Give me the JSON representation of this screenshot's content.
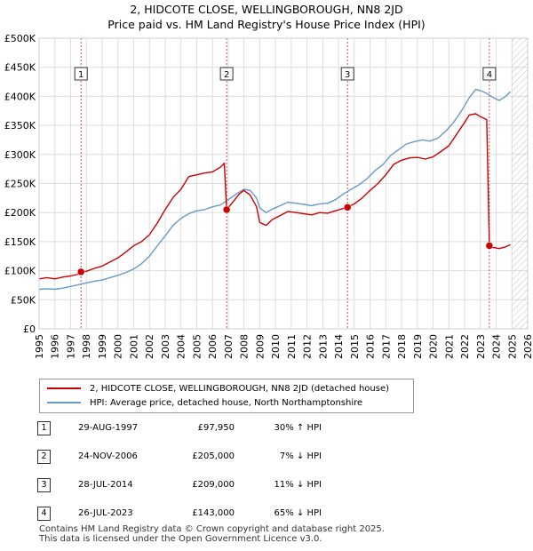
{
  "title_line1": "2, HIDCOTE CLOSE, WELLINGBOROUGH, NN8 2JD",
  "title_line2": "Price paid vs. HM Land Registry's House Price Index (HPI)",
  "colors": {
    "property": "#cc0000",
    "hpi": "#6699cc",
    "grid": "#dddddd",
    "hatch": "#999999",
    "marker_line": "#cc0000"
  },
  "chart_data": {
    "type": "line",
    "title": "Price paid vs. HM Land Registry's House Price Index (HPI)",
    "xlabel": "",
    "ylabel": "",
    "xlim": [
      1995,
      2026
    ],
    "ylim": [
      0,
      500000
    ],
    "x_ticks": [
      "1995",
      "1996",
      "1997",
      "1998",
      "1999",
      "2000",
      "2001",
      "2002",
      "2003",
      "2004",
      "2005",
      "2006",
      "2007",
      "2008",
      "2009",
      "2010",
      "2011",
      "2012",
      "2013",
      "2014",
      "2015",
      "2016",
      "2017",
      "2018",
      "2019",
      "2020",
      "2021",
      "2022",
      "2023",
      "2024",
      "2025",
      "2026"
    ],
    "y_ticks": [
      {
        "value": 0,
        "label": "£0"
      },
      {
        "value": 50000,
        "label": "£50K"
      },
      {
        "value": 100000,
        "label": "£100K"
      },
      {
        "value": 150000,
        "label": "£150K"
      },
      {
        "value": 200000,
        "label": "£200K"
      },
      {
        "value": 250000,
        "label": "£250K"
      },
      {
        "value": 300000,
        "label": "£300K"
      },
      {
        "value": 350000,
        "label": "£350K"
      },
      {
        "value": 400000,
        "label": "£400K"
      },
      {
        "value": 450000,
        "label": "£450K"
      },
      {
        "value": 500000,
        "label": "£500K"
      }
    ],
    "future_hatch_from": 2025.0,
    "series": [
      {
        "name": "2, HIDCOTE CLOSE, WELLINGBOROUGH, NN8 2JD (detached house)",
        "color": "#cc0000",
        "points": [
          [
            1995,
            86000
          ],
          [
            1995.5,
            88000
          ],
          [
            1996,
            86000
          ],
          [
            1996.5,
            89000
          ],
          [
            1997,
            91000
          ],
          [
            1997.5,
            94000
          ],
          [
            1997.66,
            97950
          ],
          [
            1998,
            99000
          ],
          [
            1998.5,
            104000
          ],
          [
            1999,
            108000
          ],
          [
            1999.5,
            115000
          ],
          [
            2000,
            122000
          ],
          [
            2000.5,
            132000
          ],
          [
            2001,
            143000
          ],
          [
            2001.5,
            150000
          ],
          [
            2002,
            162000
          ],
          [
            2002.5,
            182000
          ],
          [
            2003,
            205000
          ],
          [
            2003.5,
            226000
          ],
          [
            2004,
            240000
          ],
          [
            2004.5,
            262000
          ],
          [
            2005,
            265000
          ],
          [
            2005.5,
            268000
          ],
          [
            2006,
            270000
          ],
          [
            2006.5,
            278000
          ],
          [
            2006.75,
            285000
          ],
          [
            2006.9,
            205000
          ],
          [
            2007.2,
            215000
          ],
          [
            2007.7,
            232000
          ],
          [
            2008,
            238000
          ],
          [
            2008.4,
            230000
          ],
          [
            2008.8,
            210000
          ],
          [
            2009,
            183000
          ],
          [
            2009.4,
            178000
          ],
          [
            2009.8,
            188000
          ],
          [
            2010.3,
            195000
          ],
          [
            2010.8,
            202000
          ],
          [
            2011.3,
            200000
          ],
          [
            2011.8,
            198000
          ],
          [
            2012.3,
            196000
          ],
          [
            2012.8,
            200000
          ],
          [
            2013.3,
            199000
          ],
          [
            2013.8,
            203000
          ],
          [
            2014.3,
            207000
          ],
          [
            2014.57,
            209000
          ],
          [
            2015,
            215000
          ],
          [
            2015.5,
            225000
          ],
          [
            2016,
            238000
          ],
          [
            2016.5,
            250000
          ],
          [
            2017,
            265000
          ],
          [
            2017.5,
            283000
          ],
          [
            2018,
            290000
          ],
          [
            2018.5,
            294000
          ],
          [
            2019,
            295000
          ],
          [
            2019.5,
            292000
          ],
          [
            2020,
            296000
          ],
          [
            2020.5,
            305000
          ],
          [
            2021,
            315000
          ],
          [
            2021.5,
            335000
          ],
          [
            2022,
            355000
          ],
          [
            2022.3,
            368000
          ],
          [
            2022.7,
            370000
          ],
          [
            2023,
            365000
          ],
          [
            2023.4,
            360000
          ],
          [
            2023.57,
            143000
          ],
          [
            2023.8,
            140000
          ],
          [
            2024.2,
            138000
          ],
          [
            2024.6,
            141000
          ],
          [
            2024.9,
            145000
          ]
        ]
      },
      {
        "name": "HPI: Average price, detached house, North Northamptonshire",
        "color": "#6699cc",
        "points": [
          [
            1995,
            68000
          ],
          [
            1995.5,
            69000
          ],
          [
            1996,
            68000
          ],
          [
            1996.5,
            70000
          ],
          [
            1997,
            73000
          ],
          [
            1997.5,
            76000
          ],
          [
            1998,
            79000
          ],
          [
            1998.5,
            82000
          ],
          [
            1999,
            84000
          ],
          [
            1999.5,
            88000
          ],
          [
            2000,
            92000
          ],
          [
            2000.5,
            97000
          ],
          [
            2001,
            103000
          ],
          [
            2001.5,
            112000
          ],
          [
            2002,
            125000
          ],
          [
            2002.5,
            143000
          ],
          [
            2003,
            160000
          ],
          [
            2003.5,
            178000
          ],
          [
            2004,
            190000
          ],
          [
            2004.5,
            198000
          ],
          [
            2005,
            203000
          ],
          [
            2005.5,
            205000
          ],
          [
            2006,
            210000
          ],
          [
            2006.5,
            213000
          ],
          [
            2007,
            222000
          ],
          [
            2007.5,
            232000
          ],
          [
            2008,
            240000
          ],
          [
            2008.4,
            238000
          ],
          [
            2008.8,
            225000
          ],
          [
            2009,
            208000
          ],
          [
            2009.4,
            200000
          ],
          [
            2009.8,
            206000
          ],
          [
            2010.3,
            212000
          ],
          [
            2010.8,
            218000
          ],
          [
            2011.3,
            216000
          ],
          [
            2011.8,
            214000
          ],
          [
            2012.3,
            212000
          ],
          [
            2012.8,
            215000
          ],
          [
            2013.3,
            216000
          ],
          [
            2013.8,
            222000
          ],
          [
            2014.3,
            232000
          ],
          [
            2014.8,
            240000
          ],
          [
            2015.3,
            248000
          ],
          [
            2015.8,
            258000
          ],
          [
            2016.3,
            272000
          ],
          [
            2016.8,
            282000
          ],
          [
            2017.3,
            298000
          ],
          [
            2017.8,
            308000
          ],
          [
            2018.3,
            318000
          ],
          [
            2018.8,
            322000
          ],
          [
            2019.3,
            325000
          ],
          [
            2019.8,
            323000
          ],
          [
            2020.3,
            328000
          ],
          [
            2020.8,
            340000
          ],
          [
            2021.3,
            355000
          ],
          [
            2021.8,
            375000
          ],
          [
            2022.3,
            398000
          ],
          [
            2022.7,
            412000
          ],
          [
            2023,
            410000
          ],
          [
            2023.4,
            405000
          ],
          [
            2023.8,
            398000
          ],
          [
            2024.2,
            393000
          ],
          [
            2024.6,
            400000
          ],
          [
            2024.9,
            408000
          ]
        ]
      }
    ],
    "annotations": [
      {
        "label": "1",
        "x": 1997.66,
        "y": 97950
      },
      {
        "label": "2",
        "x": 2006.9,
        "y": 205000
      },
      {
        "label": "3",
        "x": 2014.57,
        "y": 209000
      },
      {
        "label": "4",
        "x": 2023.57,
        "y": 143000
      }
    ]
  },
  "legend": {
    "property_label": "2, HIDCOTE CLOSE, WELLINGBOROUGH, NN8 2JD (detached house)",
    "hpi_label": "HPI: Average price, detached house, North Northamptonshire"
  },
  "transactions": [
    {
      "num": "1",
      "date": "29-AUG-1997",
      "price": "£97,950",
      "hpi": "30% ↑ HPI"
    },
    {
      "num": "2",
      "date": "24-NOV-2006",
      "price": "£205,000",
      "hpi": "7% ↓ HPI"
    },
    {
      "num": "3",
      "date": "28-JUL-2014",
      "price": "£209,000",
      "hpi": "11% ↓ HPI"
    },
    {
      "num": "4",
      "date": "26-JUL-2023",
      "price": "£143,000",
      "hpi": "65% ↓ HPI"
    }
  ],
  "footer": {
    "line1": "Contains HM Land Registry data © Crown copyright and database right 2025.",
    "line2": "This data is licensed under the Open Government Licence v3.0."
  }
}
